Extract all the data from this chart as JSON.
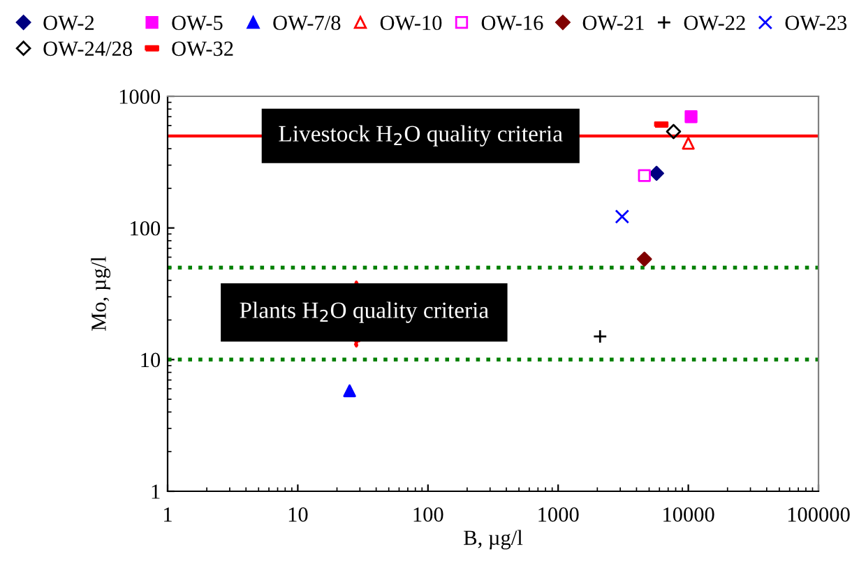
{
  "chart_data": {
    "type": "scatter",
    "xlabel": "B, µg/l",
    "ylabel": "Mo, µg/l",
    "log": "xy",
    "xlim": [
      1,
      100000
    ],
    "ylim": [
      1,
      1000
    ],
    "xticks": [
      1,
      10,
      100,
      1000,
      10000,
      100000
    ],
    "yticks": [
      1,
      10,
      100,
      1000
    ],
    "grid": false,
    "legend": "top",
    "series": [
      {
        "name": "OW-2",
        "color": "#000080",
        "marker": "diamond",
        "x": [
          5700
        ],
        "values": [
          260
        ]
      },
      {
        "name": "OW-5",
        "color": "#ff00ff",
        "marker": "square",
        "x": [
          10500
        ],
        "values": [
          700
        ]
      },
      {
        "name": "OW-7/8",
        "color": "#0000ff",
        "marker": "triangle",
        "x": [
          25
        ],
        "values": [
          5.8
        ]
      },
      {
        "name": "OW-10",
        "color": "#ff0000",
        "marker": "triangle-open",
        "x": [
          10000
        ],
        "values": [
          440
        ]
      },
      {
        "name": "OW-16",
        "color": "#ff00ff",
        "marker": "square-open",
        "x": [
          4600
        ],
        "values": [
          250
        ]
      },
      {
        "name": "OW-21",
        "color": "#800000",
        "marker": "diamond",
        "x": [
          4600
        ],
        "values": [
          58
        ]
      },
      {
        "name": "OW-22",
        "color": "#000000",
        "marker": "plus",
        "x": [
          2100
        ],
        "values": [
          15
        ]
      },
      {
        "name": "OW-23",
        "color": "#0000ff",
        "marker": "cross",
        "x": [
          3100
        ],
        "values": [
          122
        ]
      },
      {
        "name": "OW-24/28",
        "color": "#000000",
        "marker": "diamond-open",
        "x": [
          7700
        ],
        "values": [
          540
        ]
      },
      {
        "name": "OW-32",
        "color": "#ff0000",
        "x": [
          6200
        ],
        "values": [
          610
        ]
      }
    ],
    "ref_lines": [
      {
        "axis": "y",
        "value": 500,
        "label": "Livestock H$_{2}$O quality criteria",
        "color": "#ff0000",
        "line_style": "solid"
      },
      {
        "axis": "y",
        "value": 50,
        "label": "Plants H$_{2}$O quality criteria",
        "color": "#008000",
        "line_style": "dotted"
      },
      {
        "axis": "y",
        "value": 10,
        "label": null,
        "color": "#008000",
        "line_style": "dotted"
      }
    ]
  }
}
